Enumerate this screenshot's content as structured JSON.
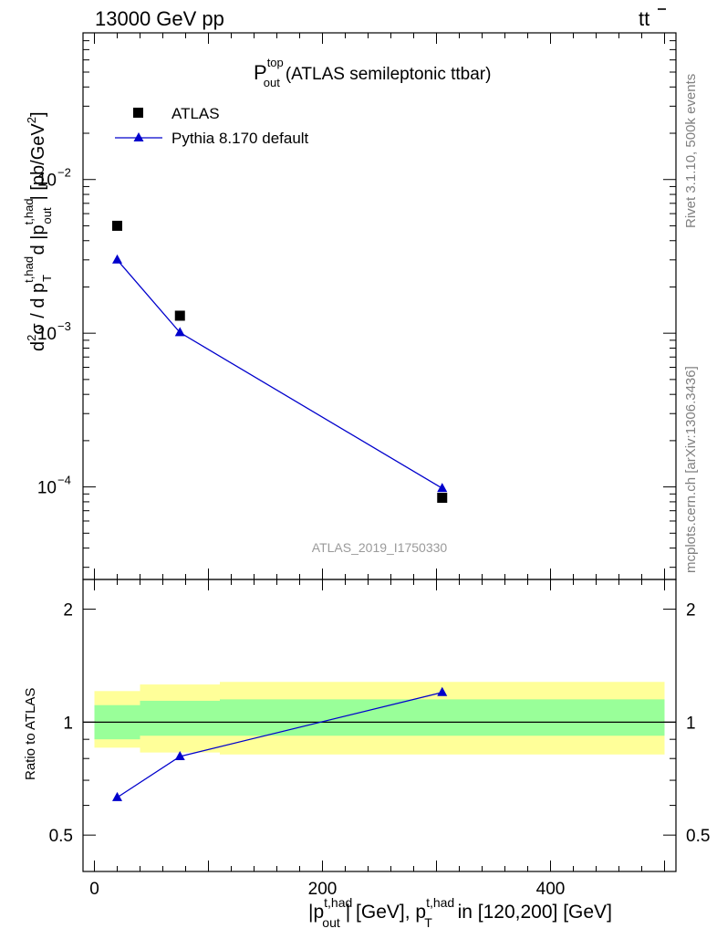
{
  "header": {
    "beam": "13000 GeV pp",
    "process_main": "tt",
    "process_bar": "̄"
  },
  "plot_title": {
    "symbol": "P",
    "sup": "top",
    "sub": "out",
    "text": "(ATLAS semileptonic ttbar)"
  },
  "analysis_id": "ATLAS_2019_I1750330",
  "side_labels": {
    "rivet": "Rivet 3.1.10,  500k events",
    "source": "mcplots.cern.ch [arXiv:1306.3436]"
  },
  "legend": {
    "data_label": "ATLAS",
    "mc_label": "Pythia 8.170 default"
  },
  "colors": {
    "data": "#000000",
    "mc": "#0000cc",
    "band_inner": "#99ff99",
    "band_outer": "#ffff99"
  },
  "axes": {
    "ylabel_top": "d²σ / d pT d |pout| [pb/GeV²]",
    "ylabel_ratio": "Ratio to ATLAS",
    "xlabel": "|pout t,had| [GeV], pT t,had in [120,200] [GeV]",
    "xlabel_parts": {
      "bar_open": "|p",
      "sup1": "t,had",
      "sub1": "out",
      "mid": "| [GeV], p",
      "sup2": "t,had",
      "sub2": "T",
      "tail": " in [120,200] [GeV]"
    },
    "ylabel_parts": {
      "d2": "d",
      "two": "2",
      "sigma": "σ /  d p",
      "sup1": "t,had",
      "sub1": "T",
      "mid": " d |p",
      "sup2": "t,had",
      "sub2": "out",
      "tail": "| [pb/GeV",
      "two2": "2",
      "close": "]"
    },
    "x_ticks": [
      "0",
      "200",
      "400"
    ],
    "y_ticks_top": [
      {
        "base": "10",
        "exp": "−2"
      },
      {
        "base": "10",
        "exp": "−3"
      },
      {
        "base": "10",
        "exp": "−4"
      }
    ],
    "y_ticks_ratio": [
      "2",
      "1",
      "0.5"
    ]
  },
  "chart_data": {
    "type": "scatter",
    "x_range": [
      -10,
      510
    ],
    "y_range_top": [
      2.5e-05,
      0.09
    ],
    "y_scale_top": "log",
    "y_range_ratio": [
      0.4,
      2.4
    ],
    "y_scale_ratio": "log",
    "bins": [
      {
        "lo": 0,
        "hi": 40,
        "x": 20,
        "data": 0.005,
        "mc": 0.003,
        "ratio": 0.63,
        "band_inner": [
          0.9,
          1.11
        ],
        "band_outer": [
          0.855,
          1.21
        ]
      },
      {
        "lo": 40,
        "hi": 110,
        "x": 75,
        "data": 0.0013,
        "mc": 0.00101,
        "ratio": 0.81,
        "band_inner": [
          0.92,
          1.14
        ],
        "band_outer": [
          0.83,
          1.26
        ]
      },
      {
        "lo": 110,
        "hi": 500,
        "x": 305,
        "data": 8.5e-05,
        "mc": 9.8e-05,
        "ratio": 1.2,
        "band_inner": [
          0.92,
          1.15
        ],
        "band_outer": [
          0.82,
          1.28
        ]
      }
    ],
    "series": [
      {
        "name": "ATLAS",
        "values": [
          0.005,
          0.0013,
          8.5e-05
        ]
      },
      {
        "name": "Pythia 8.170 default",
        "values": [
          0.003,
          0.00101,
          9.8e-05
        ]
      }
    ],
    "ratio_series": [
      {
        "name": "Pythia 8.170 default",
        "values": [
          0.63,
          0.81,
          1.2
        ]
      }
    ],
    "grid": false,
    "legend_position": "top-left"
  }
}
